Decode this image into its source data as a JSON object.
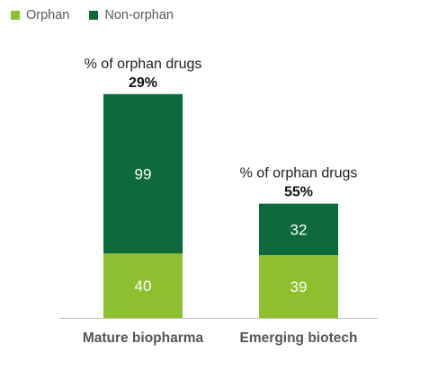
{
  "legend": {
    "items": [
      {
        "label": "Orphan",
        "color": "#8dbf2e"
      },
      {
        "label": "Non-orphan",
        "color": "#0e6a3a"
      }
    ]
  },
  "chart_data": {
    "type": "bar",
    "stacked": true,
    "categories": [
      "Mature biopharma",
      "Emerging biotech"
    ],
    "series": [
      {
        "name": "Orphan",
        "values": [
          40,
          39
        ],
        "color": "#8dbf2e"
      },
      {
        "name": "Non-orphan",
        "values": [
          99,
          32
        ],
        "color": "#0e6a3a"
      }
    ],
    "annotations": [
      {
        "caption": "% of orphan drugs",
        "value": "29%"
      },
      {
        "caption": "% of orphan drugs",
        "value": "55%"
      }
    ],
    "ylim": [
      0,
      139
    ],
    "grid": false,
    "legend_position": "top-left"
  }
}
